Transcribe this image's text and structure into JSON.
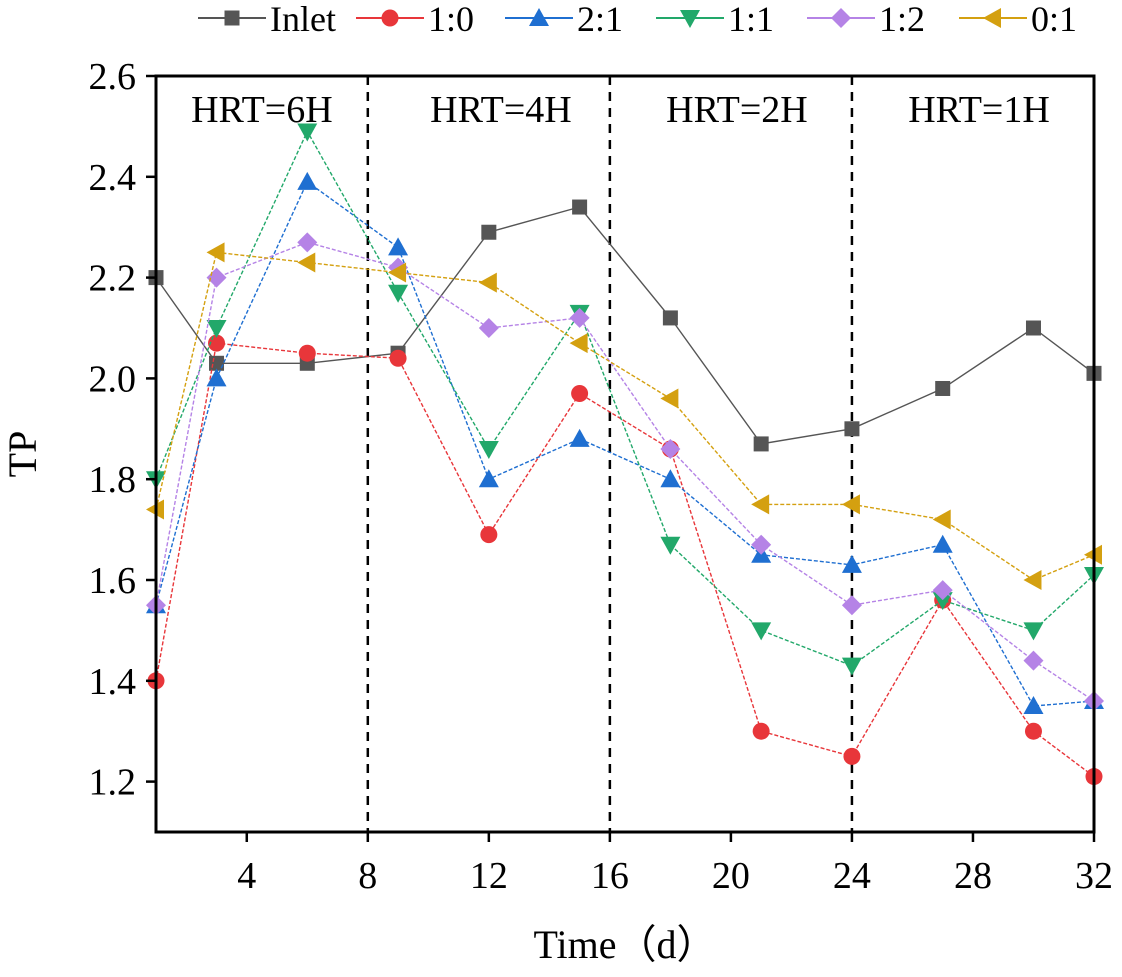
{
  "chart_data": {
    "type": "line",
    "xlabel": "Time（d）",
    "ylabel": "TP",
    "xlim": [
      1,
      32
    ],
    "ylim": [
      1.1,
      2.6
    ],
    "xticks": [
      4,
      8,
      12,
      16,
      20,
      24,
      28,
      32
    ],
    "yticks": [
      1.2,
      1.4,
      1.6,
      1.8,
      2.0,
      2.2,
      2.4,
      2.6
    ],
    "x": [
      1,
      3,
      6,
      9,
      12,
      15,
      18,
      21,
      24,
      27,
      30,
      32
    ],
    "series": [
      {
        "name": "Inlet",
        "color": "#555555",
        "marker": "square",
        "values": [
          2.2,
          2.03,
          2.03,
          2.05,
          2.29,
          2.34,
          2.12,
          1.87,
          1.9,
          1.98,
          2.1,
          2.01
        ]
      },
      {
        "name": "1:0",
        "color": "#e8363a",
        "marker": "circle",
        "values": [
          1.4,
          2.07,
          2.05,
          2.04,
          1.69,
          1.97,
          1.86,
          1.3,
          1.25,
          1.56,
          1.3,
          1.21
        ]
      },
      {
        "name": "2:1",
        "color": "#1f6fd1",
        "marker": "triangle-up",
        "values": [
          1.55,
          2.0,
          2.39,
          2.26,
          1.8,
          1.88,
          1.8,
          1.65,
          1.63,
          1.67,
          1.35,
          1.36
        ]
      },
      {
        "name": "1:1",
        "color": "#22a86a",
        "marker": "triangle-down",
        "values": [
          1.8,
          2.1,
          2.49,
          2.17,
          1.86,
          2.13,
          1.67,
          1.5,
          1.43,
          1.56,
          1.5,
          1.61
        ]
      },
      {
        "name": "1:2",
        "color": "#b583e6",
        "marker": "diamond",
        "values": [
          1.55,
          2.2,
          2.27,
          2.22,
          2.1,
          2.12,
          1.86,
          1.67,
          1.55,
          1.58,
          1.44,
          1.36
        ]
      },
      {
        "name": "0:1",
        "color": "#d4a010",
        "marker": "triangle-left",
        "values": [
          1.74,
          2.25,
          2.23,
          2.21,
          2.19,
          2.07,
          1.96,
          1.75,
          1.75,
          1.72,
          1.6,
          1.65
        ]
      }
    ],
    "dividers": [
      8,
      16,
      24
    ],
    "regions": [
      {
        "label": "HRT=6H",
        "x_center": 4.5
      },
      {
        "label": "HRT=4H",
        "x_center": 12.4
      },
      {
        "label": "HRT=2H",
        "x_center": 20.2
      },
      {
        "label": "HRT=1H",
        "x_center": 28.2
      }
    ],
    "legend_position": "top"
  }
}
